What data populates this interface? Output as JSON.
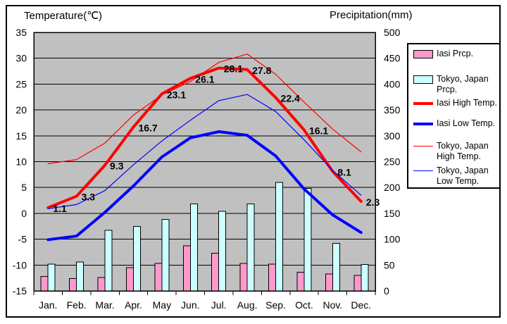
{
  "titles": {
    "left": "Temperature(℃)",
    "right": "Precipitation(mm)"
  },
  "chart_data": {
    "type": "bar+line",
    "categories": [
      "Jan.",
      "Feb.",
      "Mar.",
      "Apr.",
      "May",
      "Jun.",
      "Jul.",
      "Aug.",
      "Sep.",
      "Oct.",
      "Nov.",
      "Dec."
    ],
    "temp_axis": {
      "title": "Temperature(℃)",
      "side": "left",
      "min": -15,
      "max": 35,
      "step": 5,
      "ticks": [
        35,
        30,
        25,
        20,
        15,
        10,
        5,
        0,
        -5,
        -10,
        -15
      ]
    },
    "precip_axis": {
      "title": "Precipitation(mm)",
      "side": "right",
      "min": 0,
      "max": 500,
      "step": 50,
      "ticks": [
        500,
        450,
        400,
        350,
        300,
        250,
        200,
        150,
        100,
        50,
        0
      ]
    },
    "plot_bg": "#C0C0C0",
    "grid": "horizontal",
    "legend_position": "right",
    "bar_series": [
      {
        "name": "Iasi Prcp.",
        "color": "#FF99CC",
        "axis": "precip",
        "values": [
          28,
          24,
          26,
          45,
          53,
          87,
          73,
          53,
          52,
          36,
          33,
          30
        ]
      },
      {
        "name": "Tokyo, Japan Prcp.",
        "color": "#CCFFFF",
        "axis": "precip",
        "values": [
          52,
          56,
          117,
          125,
          138,
          168,
          154,
          168,
          210,
          198,
          92,
          51
        ]
      }
    ],
    "line_series": [
      {
        "name": "Iasi High Temp.",
        "color": "#FF0000",
        "width": 4,
        "axis": "temp",
        "show_labels": true,
        "values": [
          1.1,
          3.3,
          9.3,
          16.7,
          23.1,
          26.1,
          28.1,
          27.8,
          22.4,
          16.1,
          8.1,
          2.3
        ]
      },
      {
        "name": "Iasi Low Temp.",
        "color": "#0000FF",
        "width": 4,
        "axis": "temp",
        "show_labels": false,
        "values": [
          -5.1,
          -4.4,
          0.2,
          5.3,
          10.9,
          14.6,
          15.8,
          15.1,
          11.1,
          4.7,
          -0.3,
          -3.7
        ]
      },
      {
        "name": "Tokyo, Japan High Temp.",
        "color": "#FF0000",
        "width": 1.2,
        "axis": "temp",
        "show_labels": false,
        "values": [
          9.6,
          10.4,
          13.6,
          19.0,
          22.9,
          25.5,
          29.2,
          30.8,
          26.9,
          21.5,
          16.3,
          11.9
        ]
      },
      {
        "name": "Tokyo, Japan Low Temp.",
        "color": "#0000FF",
        "width": 1.2,
        "axis": "temp",
        "show_labels": false,
        "values": [
          0.9,
          1.7,
          4.4,
          9.4,
          14.0,
          18.0,
          21.8,
          23.0,
          19.7,
          14.2,
          8.3,
          3.5
        ]
      }
    ]
  }
}
